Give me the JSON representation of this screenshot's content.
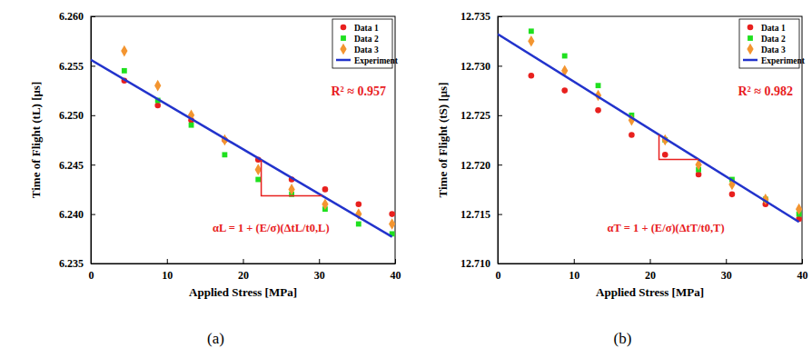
{
  "chart_data": [
    {
      "type": "scatter",
      "title": "(a)",
      "x_label": "Applied Stress [MPa]",
      "y_label": "Time of Flight (tL) [μs]",
      "xlim": [
        0,
        40
      ],
      "xticks": [
        0,
        10,
        20,
        30,
        40
      ],
      "ylim": [
        6.235,
        6.26
      ],
      "yticks": [
        6.235,
        {
          "value": 6.24,
          "label": "6.240"
        },
        6.245,
        {
          "value": 6.25,
          "label": "6.250"
        },
        6.255,
        {
          "value": 6.26,
          "label": "6.260"
        }
      ],
      "grid": false,
      "legend": "upper right",
      "x": [
        4.4,
        8.8,
        13.2,
        17.6,
        22,
        26.4,
        30.8,
        35.2,
        39.6
      ],
      "series": [
        {
          "name": "Data 1",
          "type": "scatter",
          "marker": "circle",
          "color": "#e8201e",
          "values": [
            6.2535,
            6.251,
            6.2495,
            6.2475,
            6.2455,
            6.2435,
            6.2425,
            6.241,
            6.24
          ]
        },
        {
          "name": "Data 2",
          "type": "scatter",
          "marker": "square",
          "color": "#1fe01f",
          "values": [
            6.2545,
            6.2515,
            6.249,
            6.246,
            6.2435,
            6.242,
            6.2405,
            6.239,
            6.238
          ]
        },
        {
          "name": "Data 3",
          "type": "scatter",
          "marker": "diamond",
          "color": "#f39530",
          "values": [
            6.2565,
            6.253,
            6.25,
            6.2475,
            6.2445,
            6.2425,
            6.241,
            6.24,
            6.239
          ]
        },
        {
          "name": "Experiment",
          "type": "line",
          "line_style": "solid",
          "color": "#2233cc",
          "x": [
            0,
            39.6
          ],
          "values": [
            6.2556,
            6.2377
          ]
        }
      ],
      "annotations": [
        "R² ≈ 0.957",
        "αL = 1 + (E/σ)(ΔtL/t0,L)"
      ]
    },
    {
      "type": "scatter",
      "title": "(b)",
      "x_label": "Applied Stress [MPa]",
      "y_label": "Time of Flight (tS) [μs]",
      "xlim": [
        0,
        40
      ],
      "xticks": [
        0,
        10,
        20,
        30,
        40
      ],
      "ylim": [
        12.71,
        12.735
      ],
      "yticks": [
        {
          "value": 12.71,
          "label": "12.710"
        },
        12.715,
        {
          "value": 12.72,
          "label": "12.720"
        },
        12.725,
        {
          "value": 12.73,
          "label": "12.730"
        },
        12.735
      ],
      "grid": false,
      "legend": "upper right",
      "x": [
        4.4,
        8.8,
        13.2,
        17.6,
        22,
        26.4,
        30.8,
        35.2,
        39.6
      ],
      "series": [
        {
          "name": "Data 1",
          "type": "scatter",
          "marker": "circle",
          "color": "#e8201e",
          "values": [
            12.729,
            12.7275,
            12.7255,
            12.723,
            12.721,
            12.719,
            12.717,
            12.716,
            12.7145
          ]
        },
        {
          "name": "Data 2",
          "type": "scatter",
          "marker": "square",
          "color": "#1fe01f",
          "values": [
            12.7335,
            12.731,
            12.728,
            12.725,
            12.7225,
            12.7195,
            12.7185,
            12.7165,
            12.715
          ]
        },
        {
          "name": "Data 3",
          "type": "scatter",
          "marker": "diamond",
          "color": "#f39530",
          "values": [
            12.7325,
            12.7295,
            12.727,
            12.7245,
            12.7225,
            12.72,
            12.718,
            12.7165,
            12.7155
          ]
        },
        {
          "name": "Experiment",
          "type": "line",
          "line_style": "solid",
          "color": "#2233cc",
          "x": [
            0,
            39.6
          ],
          "values": [
            12.7332,
            12.7142
          ]
        }
      ],
      "annotations": [
        "R² ≈ 0.982",
        "αT = 1 + (E/σ)(ΔtT/t0,T)"
      ]
    }
  ]
}
